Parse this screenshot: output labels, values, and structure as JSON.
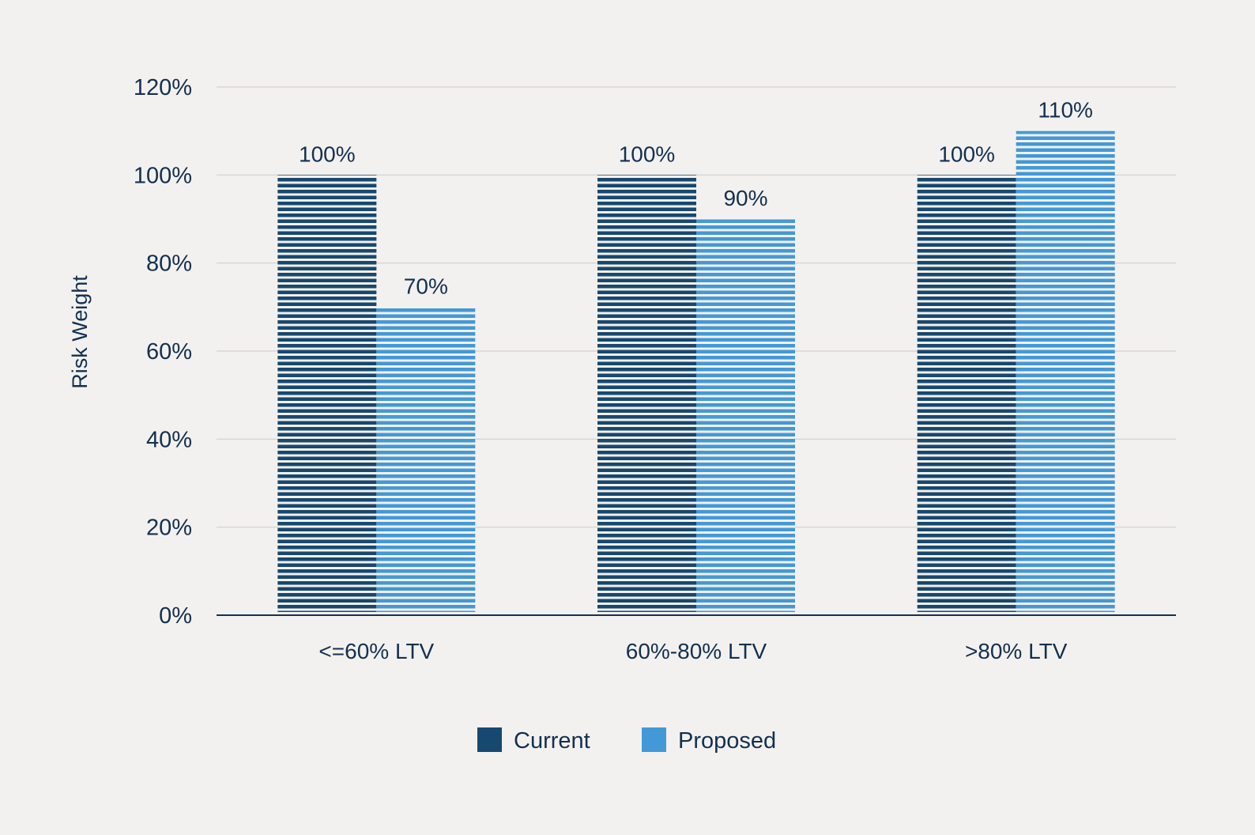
{
  "chart_data": {
    "type": "bar",
    "ylabel": "Risk Weight",
    "xlabel": "",
    "categories": [
      "<=60% LTV",
      "60%-80% LTV",
      ">80% LTV"
    ],
    "series": [
      {
        "name": "Current",
        "values": [
          100,
          100,
          100
        ],
        "labels": [
          "100%",
          "100%",
          "100%"
        ],
        "color": "#17486f"
      },
      {
        "name": "Proposed",
        "values": [
          70,
          90,
          110
        ],
        "labels": [
          "70%",
          "90%",
          "110%"
        ],
        "color": "#4399d6"
      }
    ],
    "ylim": [
      0,
      120
    ],
    "yticks": [
      0,
      20,
      40,
      60,
      80,
      100,
      120
    ],
    "ytick_labels": [
      "0%",
      "20%",
      "40%",
      "60%",
      "80%",
      "100%",
      "120%"
    ],
    "grid": true,
    "legend_position": "bottom-center",
    "bar_pattern": "horizontal-stripes"
  }
}
